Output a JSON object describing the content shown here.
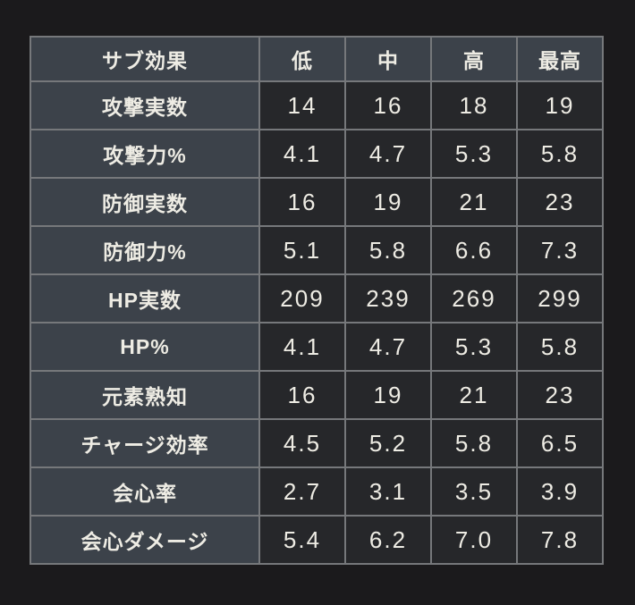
{
  "colors": {
    "page_bg": "#1b1a1c",
    "header_bg": "#3c424a",
    "label_bg": "#3c424a",
    "value_bg": "#26272a",
    "border": "#76787b",
    "text": "#eeece4"
  },
  "table": {
    "header": [
      "サブ効果",
      "低",
      "中",
      "高",
      "最高"
    ],
    "rows": [
      {
        "label": "攻撃実数",
        "values": [
          "14",
          "16",
          "18",
          "19"
        ]
      },
      {
        "label": "攻撃力%",
        "values": [
          "4.1",
          "4.7",
          "5.3",
          "5.8"
        ]
      },
      {
        "label": "防御実数",
        "values": [
          "16",
          "19",
          "21",
          "23"
        ]
      },
      {
        "label": "防御力%",
        "values": [
          "5.1",
          "5.8",
          "6.6",
          "7.3"
        ]
      },
      {
        "label": "HP実数",
        "values": [
          "209",
          "239",
          "269",
          "299"
        ]
      },
      {
        "label": "HP%",
        "values": [
          "4.1",
          "4.7",
          "5.3",
          "5.8"
        ]
      },
      {
        "label": "元素熟知",
        "values": [
          "16",
          "19",
          "21",
          "23"
        ]
      },
      {
        "label": "チャージ効率",
        "values": [
          "4.5",
          "5.2",
          "5.8",
          "6.5"
        ]
      },
      {
        "label": "会心率",
        "values": [
          "2.7",
          "3.1",
          "3.5",
          "3.9"
        ]
      },
      {
        "label": "会心ダメージ",
        "values": [
          "5.4",
          "6.2",
          "7.0",
          "7.8"
        ]
      }
    ]
  },
  "chart_data": {
    "type": "table",
    "title": "",
    "columns": [
      "サブ効果",
      "低",
      "中",
      "高",
      "最高"
    ],
    "rows": [
      [
        "攻撃実数",
        14,
        16,
        18,
        19
      ],
      [
        "攻撃力%",
        4.1,
        4.7,
        5.3,
        5.8
      ],
      [
        "防御実数",
        16,
        19,
        21,
        23
      ],
      [
        "防御力%",
        5.1,
        5.8,
        6.6,
        7.3
      ],
      [
        "HP実数",
        209,
        239,
        269,
        299
      ],
      [
        "HP%",
        4.1,
        4.7,
        5.3,
        5.8
      ],
      [
        "元素熟知",
        16,
        19,
        21,
        23
      ],
      [
        "チャージ効率",
        4.5,
        5.2,
        5.8,
        6.5
      ],
      [
        "会心率",
        2.7,
        3.1,
        3.5,
        3.9
      ],
      [
        "会心ダメージ",
        5.4,
        6.2,
        7.0,
        7.8
      ]
    ]
  }
}
